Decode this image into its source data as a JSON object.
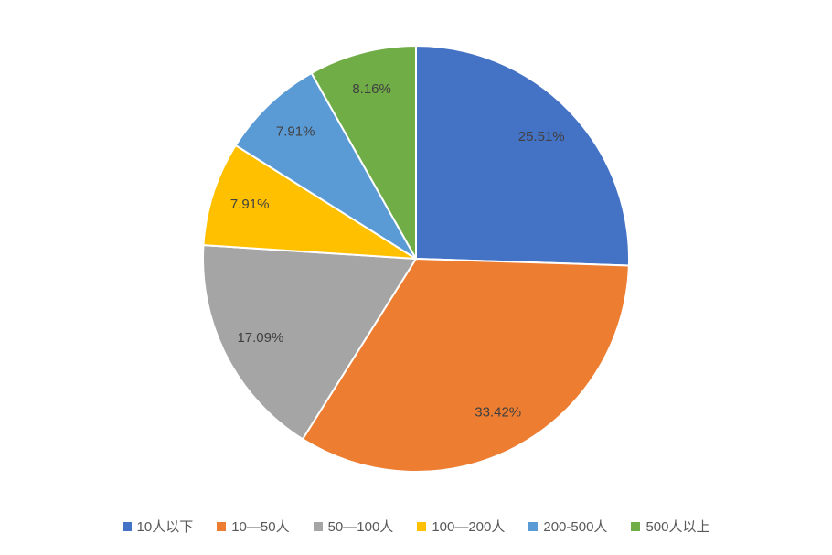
{
  "chart_data": {
    "type": "pie",
    "start_angle_deg": 0,
    "direction": "clockwise",
    "legend_position": "bottom",
    "label_color": "#404040",
    "legend_text_color": "#595959",
    "background_color": "#ffffff",
    "slice_border_color": "#ffffff",
    "slices": [
      {
        "label": "10人以下",
        "value": 25.51,
        "value_label": "25.51%",
        "color": "#4472C4"
      },
      {
        "label": "10—50人",
        "value": 33.42,
        "value_label": "33.42%",
        "color": "#ED7D31"
      },
      {
        "label": "50—100人",
        "value": 17.09,
        "value_label": "17.09%",
        "color": "#A5A5A5"
      },
      {
        "label": "100—200人",
        "value": 7.91,
        "value_label": "7.91%",
        "color": "#FFC000"
      },
      {
        "label": "200-500人",
        "value": 7.91,
        "value_label": "7.91%",
        "color": "#5B9BD5"
      },
      {
        "label": "500人以上",
        "value": 8.16,
        "value_label": "8.16%",
        "color": "#70AD47"
      }
    ]
  }
}
